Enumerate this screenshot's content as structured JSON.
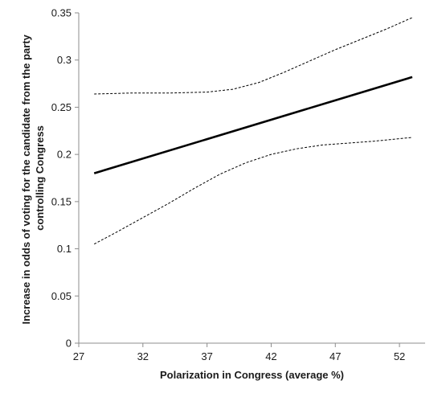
{
  "chart_data": {
    "type": "line",
    "title": "",
    "xlabel": "Polarization in Congress (average %)",
    "ylabel_lines": [
      "Increase in odds of voting for the candidate from the party",
      "controlling Congress"
    ],
    "xlim": [
      27,
      54
    ],
    "ylim": [
      0,
      0.35
    ],
    "x_ticks": [
      27,
      32,
      37,
      42,
      47,
      52
    ],
    "x_tick_labels": [
      "27",
      "32",
      "37",
      "42",
      "47",
      "52"
    ],
    "y_ticks": [
      0,
      0.05,
      0.1,
      0.15,
      0.2,
      0.25,
      0.3,
      0.35
    ],
    "y_tick_labels": [
      "0",
      "0.05",
      "0.1",
      "0.15",
      "0.2",
      "0.25",
      "0.3",
      "0.35"
    ],
    "grid": false,
    "legend": "none",
    "series": [
      {
        "style": "solid",
        "color": "#000000",
        "x": [
          28.2,
          53
        ],
        "y": [
          0.18,
          0.282
        ]
      },
      {
        "style": "dashed",
        "color": "#000000",
        "x": [
          28.2,
          31,
          34,
          37,
          39,
          41,
          43,
          45,
          47,
          49,
          51,
          53
        ],
        "y": [
          0.264,
          0.265,
          0.265,
          0.266,
          0.269,
          0.276,
          0.287,
          0.299,
          0.311,
          0.322,
          0.333,
          0.345
        ]
      },
      {
        "style": "dashed",
        "color": "#000000",
        "x": [
          28.2,
          30,
          32,
          34,
          36,
          38,
          40,
          42,
          44,
          46,
          48,
          50,
          53
        ],
        "y": [
          0.105,
          0.118,
          0.133,
          0.148,
          0.164,
          0.179,
          0.191,
          0.2,
          0.206,
          0.21,
          0.212,
          0.214,
          0.218
        ]
      }
    ]
  }
}
